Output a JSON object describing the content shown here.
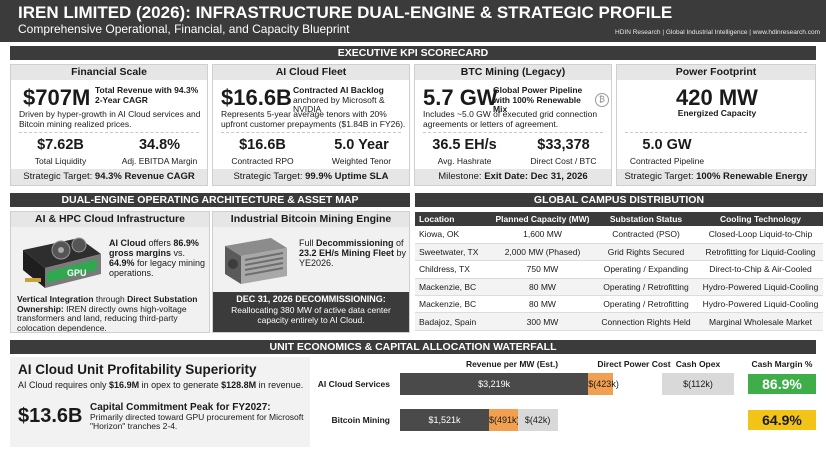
{
  "header": {
    "title": "IREN LIMITED (2026): INFRASTRUCTURE DUAL-ENGINE & STRATEGIC PROFILE",
    "subtitle": "Comprehensive Operational, Financial, and Capacity Blueprint",
    "source": "HDIN Research | Global Industrial Intelligence | www.hdinresearch.com"
  },
  "kpi_section_title": "EXECUTIVE KPI SCORECARD",
  "kpis": [
    {
      "heading": "Financial Scale",
      "big_value": "$707M",
      "big_desc": "Total Revenue with 94.3% 2-Year CAGR",
      "desc": "Driven by hyper-growth in AI Cloud services and Bitcoin mining realized prices.",
      "metrics": [
        {
          "value": "$7.62B",
          "label": "Total Liquidity"
        },
        {
          "value": "34.8%",
          "label": "Adj. EBITDA Margin"
        }
      ],
      "footer_prefix": "Strategic Target: ",
      "footer_value": "94.3% Revenue CAGR"
    },
    {
      "heading": "AI Cloud Fleet",
      "big_value": "$16.6B",
      "big_desc_bold": "Contracted AI Backlog",
      "big_desc": "anchored by Microsoft & NVIDIA",
      "desc": "Represents 5-year average tenors with 20% upfront customer prepayments ($1.84B in FY26).",
      "metrics": [
        {
          "value": "$16.6B",
          "label": "Contracted RPO"
        },
        {
          "value": "5.0 Year",
          "label": "Weighted Tenor"
        }
      ],
      "footer_prefix": "Strategic Target: ",
      "footer_value": "99.9% Uptime SLA"
    },
    {
      "heading": "BTC Mining (Legacy)",
      "big_value": "5.7 GW",
      "big_desc": "Global Power Pipeline with 100% Renewable Mix",
      "desc": "Includes ~5.0 GW of executed grid connection agreements or letters of agreement.",
      "metrics": [
        {
          "value": "36.5 EH/s",
          "label": "Avg. Hashrate"
        },
        {
          "value": "$33,378",
          "label": "Direct Cost / BTC"
        }
      ],
      "footer_prefix": "Milestone: ",
      "footer_value": "Exit Date: Dec 31, 2026"
    },
    {
      "heading": "Power Footprint",
      "big_value": "420 MW",
      "big_desc": "Energized Capacity",
      "metrics": [
        {
          "value": "5.0 GW",
          "label": "Contracted Pipeline"
        }
      ],
      "footer_prefix": "Strategic Target: ",
      "footer_value": "100% Renewable Energy"
    }
  ],
  "architecture": {
    "title": "DUAL-ENGINE OPERATING ARCHITECTURE & ASSET MAP",
    "ai": {
      "heading": "AI & HPC Cloud Infrastructure",
      "gpu_label": "GPU",
      "lead_bold": "AI Cloud",
      "lead_1": " offers ",
      "lead_margin": "86.9% gross margins",
      "lead_2": " vs. ",
      "lead_margin2": "64.9%",
      "lead_3": " for legacy mining operations.",
      "vert_bold": "Vertical Integration",
      "vert_1": " through ",
      "vert_bold2": "Direct Substation Ownership:",
      "vert_2": " IREN directly owns high-voltage transformers and land, reducing third-party colocation dependence."
    },
    "btc": {
      "heading": "Industrial Bitcoin Mining Engine",
      "decom_1": "Full ",
      "decom_bold": "Decommissioning",
      "decom_2": " of ",
      "decom_bold2": "23.2 EH/s Mining Fleet",
      "decom_3": " by YE2026.",
      "callout_title": "DEC 31, 2026 DECOMMISSIONING:",
      "callout_text": "Reallocating 380 MW of active data center capacity entirely to AI Cloud."
    }
  },
  "campus": {
    "title": "GLOBAL CAMPUS DISTRIBUTION",
    "columns": [
      "Location",
      "Planned Capacity (MW)",
      "Substation Status",
      "Cooling Technology"
    ],
    "rows": [
      [
        "Kiowa, OK",
        "1,600 MW",
        "Contracted (PSO)",
        "Closed-Loop Liquid-to-Chip"
      ],
      [
        "Sweetwater, TX",
        "2,000 MW (Phased)",
        "Grid Rights Secured",
        "Retrofitting for Liquid-Cooling"
      ],
      [
        "Childress, TX",
        "750 MW",
        "Operating / Expanding",
        "Direct-to-Chip & Air-Cooled"
      ],
      [
        "Mackenzie, BC",
        "80 MW",
        "Operating / Retrofitting",
        "Hydro-Powered Liquid-Cooling"
      ],
      [
        "Mackenzie, BC",
        "80 MW",
        "Operating / Retrofitting",
        "Hydro-Powered Liquid-Cooling"
      ],
      [
        "Badajoz, Spain",
        "300 MW",
        "Connection Rights Held",
        "Marginal Wholesale Market"
      ]
    ]
  },
  "economics": {
    "title": "UNIT ECONOMICS & CAPITAL ALLOCATION WATERFALL",
    "headline": "AI Cloud Unit Profitability Superiority",
    "sub_1": "AI Cloud requires only ",
    "sub_b1": "$16.9M",
    "sub_2": " in opex to generate ",
    "sub_b2": "$128.8M",
    "sub_3": " in revenue.",
    "capex_value": "$13.6B",
    "capex_title": "Capital Commitment Peak for FY2027:",
    "capex_desc": "Primarily directed toward GPU procurement for Microsoft \"Horizon\" tranches 2-4.",
    "columns": [
      "Revenue per MW (Est.)",
      "Direct Power Cost",
      "Cash Opex",
      "Cash Margin %"
    ],
    "colors": {
      "revenue": "#4a4a4a",
      "power": "#f0a050",
      "opex": "#d9d9d9",
      "margin_ai": "#3fae49",
      "margin_btc": "#f3c418"
    }
  },
  "chart_data": {
    "type": "bar",
    "categories": [
      "AI Cloud Services",
      "Bitcoin Mining"
    ],
    "series": [
      {
        "name": "Revenue per MW (Est.)",
        "values": [
          3219,
          1521
        ],
        "labels": [
          "$3,219k",
          "$1,521k"
        ]
      },
      {
        "name": "Direct Power Cost",
        "values": [
          423,
          491
        ],
        "labels": [
          "$(423k)",
          "$(491k)"
        ]
      },
      {
        "name": "Cash Opex",
        "values": [
          112,
          42
        ],
        "labels": [
          "$(112k)",
          "$(42k)"
        ]
      },
      {
        "name": "Cash Margin %",
        "values": [
          86.9,
          64.9
        ],
        "labels": [
          "86.9%",
          "64.9%"
        ]
      }
    ]
  }
}
